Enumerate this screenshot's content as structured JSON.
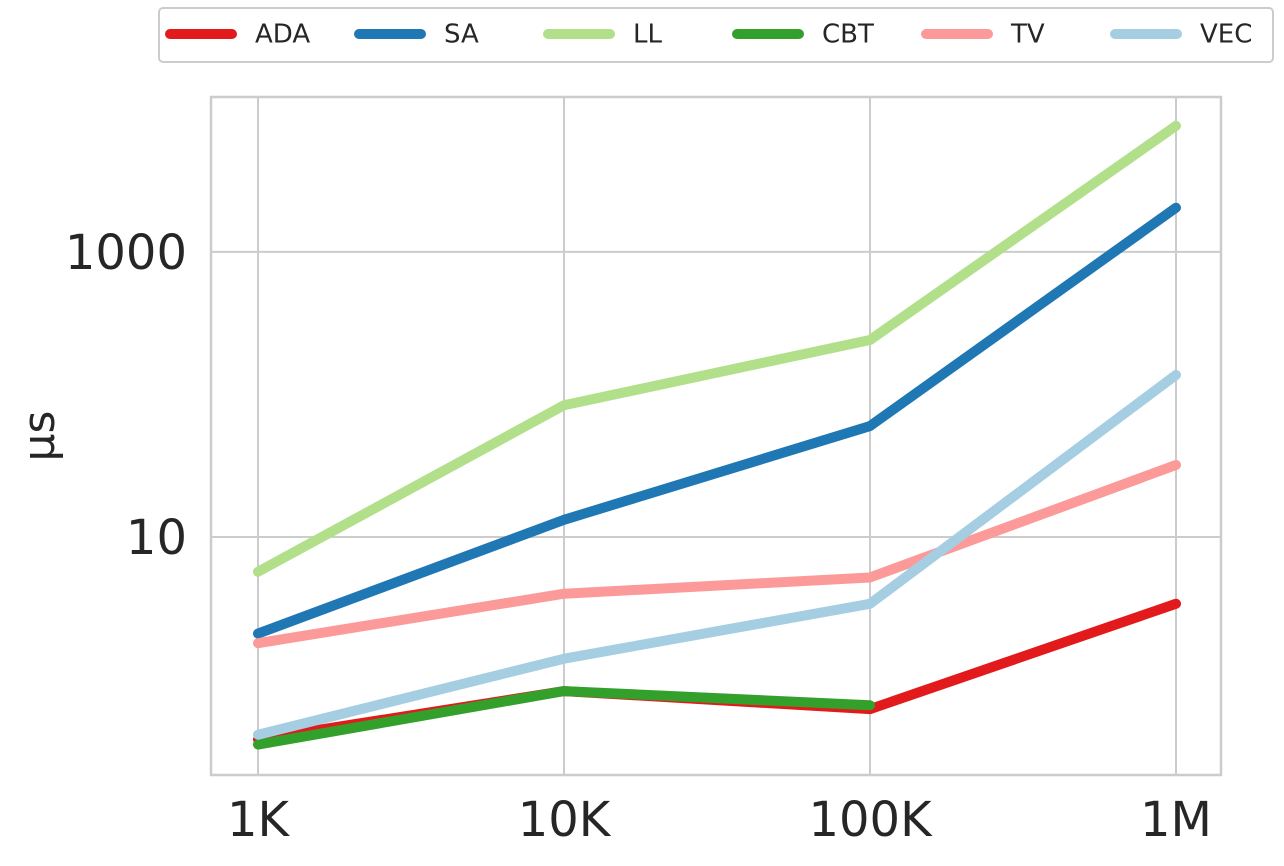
{
  "chart_data": {
    "type": "line",
    "ylabel": "μs",
    "categories": [
      "1K",
      "10K",
      "100K",
      "1M"
    ],
    "series": [
      {
        "name": "ADA",
        "color": "#e31a1c",
        "values": [
          0.38,
          0.83,
          0.62,
          3.4
        ]
      },
      {
        "name": "SA",
        "color": "#1f78b4",
        "values": [
          2.1,
          13.2,
          60,
          2040
        ]
      },
      {
        "name": "LL",
        "color": "#b2df8a",
        "values": [
          5.7,
          84,
          241,
          7660
        ]
      },
      {
        "name": "CBT",
        "color": "#33a02c",
        "values": [
          0.35,
          0.83,
          0.66,
          null
        ]
      },
      {
        "name": "TV",
        "color": "#fb9a99",
        "values": [
          1.8,
          4.0,
          5.2,
          32
        ]
      },
      {
        "name": "VEC",
        "color": "#a6cee3",
        "values": [
          0.41,
          1.4,
          3.4,
          137
        ]
      }
    ],
    "yscale": "log",
    "ylim": [
      0.214,
      12200
    ],
    "yticks": [
      10,
      1000
    ],
    "grid": true,
    "legend": "upper center"
  }
}
